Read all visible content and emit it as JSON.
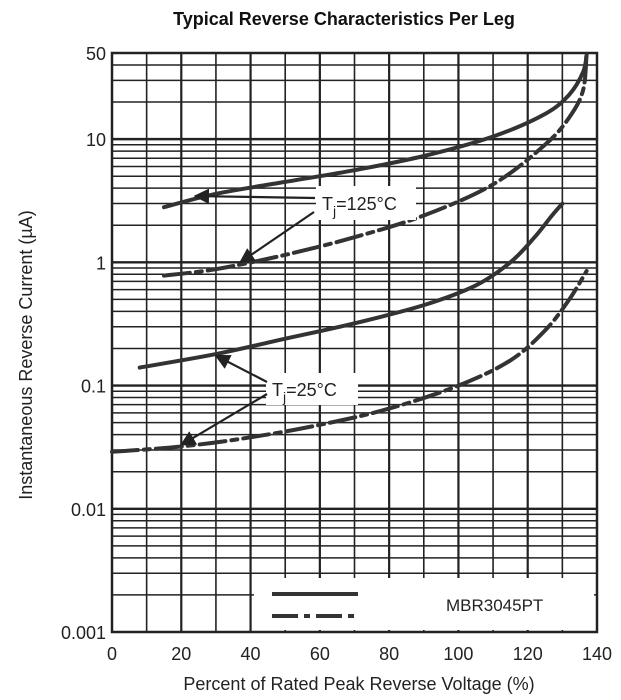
{
  "chart_data": {
    "type": "line",
    "title": "Typical Reverse Characteristics Per Leg",
    "xlabel": "Percent of Rated Peak Reverse Voltage (%)",
    "ylabel": "Instantaneous Reverse Current (µA)",
    "xlim": [
      0,
      140
    ],
    "ylim": [
      0.001,
      50
    ],
    "yscale": "log",
    "grid": true,
    "x_ticks": [
      {
        "value": 0,
        "label": "0"
      },
      {
        "value": 20,
        "label": "20"
      },
      {
        "value": 40,
        "label": "40"
      },
      {
        "value": 60,
        "label": "60"
      },
      {
        "value": 80,
        "label": "80"
      },
      {
        "value": 100,
        "label": "100"
      },
      {
        "value": 120,
        "label": "120"
      },
      {
        "value": 140,
        "label": "140"
      }
    ],
    "y_ticks": [
      {
        "value": 0.001,
        "label": "0.001"
      },
      {
        "value": 0.01,
        "label": "0.01"
      },
      {
        "value": 0.1,
        "label": "0.1"
      },
      {
        "value": 1,
        "label": "1"
      },
      {
        "value": 10,
        "label": "10"
      },
      {
        "value": 50,
        "label": "50"
      }
    ],
    "series": [
      {
        "name": "",
        "style": "solid",
        "color": "#333333",
        "points": [
          [
            15,
            2.8
          ],
          [
            30,
            3.6
          ],
          [
            50,
            4.5
          ],
          [
            70,
            5.6
          ],
          [
            90,
            7.3
          ],
          [
            110,
            10.5
          ],
          [
            125,
            16
          ],
          [
            132,
            23
          ],
          [
            136,
            35
          ],
          [
            137,
            48
          ]
        ]
      },
      {
        "name": "",
        "style": "dashed",
        "color": "#333333",
        "points": [
          [
            15,
            0.78
          ],
          [
            30,
            0.88
          ],
          [
            50,
            1.15
          ],
          [
            70,
            1.6
          ],
          [
            90,
            2.4
          ],
          [
            110,
            4.3
          ],
          [
            125,
            9
          ],
          [
            132,
            15
          ],
          [
            136,
            25
          ],
          [
            137,
            50
          ]
        ]
      },
      {
        "name": "",
        "style": "solid",
        "color": "#333333",
        "points": [
          [
            8,
            0.14
          ],
          [
            30,
            0.18
          ],
          [
            50,
            0.24
          ],
          [
            70,
            0.32
          ],
          [
            90,
            0.45
          ],
          [
            105,
            0.65
          ],
          [
            115,
            1.0
          ],
          [
            122,
            1.6
          ],
          [
            127,
            2.4
          ],
          [
            130,
            3.0
          ]
        ]
      },
      {
        "name": "",
        "style": "dashed",
        "color": "#333333",
        "points": [
          [
            0,
            0.029
          ],
          [
            20,
            0.032
          ],
          [
            40,
            0.038
          ],
          [
            60,
            0.048
          ],
          [
            80,
            0.065
          ],
          [
            100,
            0.1
          ],
          [
            115,
            0.16
          ],
          [
            125,
            0.28
          ],
          [
            132,
            0.5
          ],
          [
            137,
            0.85
          ]
        ]
      }
    ],
    "annotations": [
      {
        "text_prefix": "T",
        "subscript": "j",
        "text_suffix": "=125°C"
      },
      {
        "text_prefix": "T",
        "subscript": "j",
        "text_suffix": "=25°C"
      }
    ],
    "legend": {
      "placement": "bottom-right",
      "label": "MBR3045PT",
      "entries": [
        "solid",
        "dashed"
      ]
    }
  }
}
